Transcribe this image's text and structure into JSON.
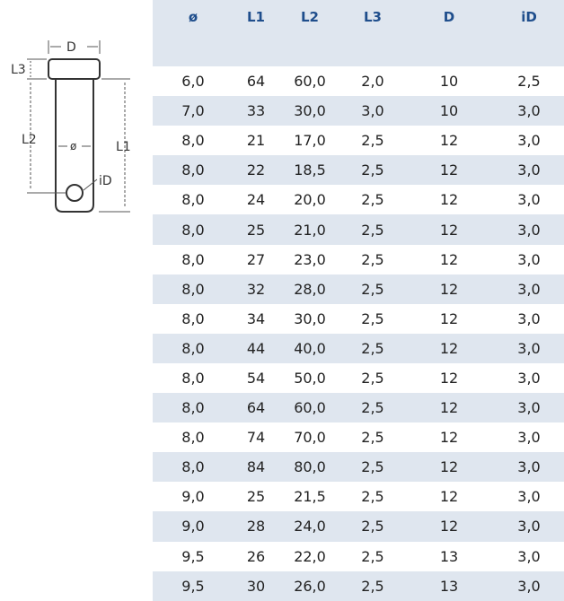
{
  "diagram": {
    "labels": {
      "d": "D",
      "l3": "L3",
      "l2": "L2",
      "l1": "L1",
      "dia": "ø",
      "id": "iD"
    }
  },
  "table": {
    "headers": [
      "ø",
      "L1",
      "L2",
      "L3",
      "D",
      "iD"
    ],
    "rows": [
      [
        "6,0",
        "64",
        "60,0",
        "2,0",
        "10",
        "2,5"
      ],
      [
        "7,0",
        "33",
        "30,0",
        "3,0",
        "10",
        "3,0"
      ],
      [
        "8,0",
        "21",
        "17,0",
        "2,5",
        "12",
        "3,0"
      ],
      [
        "8,0",
        "22",
        "18,5",
        "2,5",
        "12",
        "3,0"
      ],
      [
        "8,0",
        "24",
        "20,0",
        "2,5",
        "12",
        "3,0"
      ],
      [
        "8,0",
        "25",
        "21,0",
        "2,5",
        "12",
        "3,0"
      ],
      [
        "8,0",
        "27",
        "23,0",
        "2,5",
        "12",
        "3,0"
      ],
      [
        "8,0",
        "32",
        "28,0",
        "2,5",
        "12",
        "3,0"
      ],
      [
        "8,0",
        "34",
        "30,0",
        "2,5",
        "12",
        "3,0"
      ],
      [
        "8,0",
        "44",
        "40,0",
        "2,5",
        "12",
        "3,0"
      ],
      [
        "8,0",
        "54",
        "50,0",
        "2,5",
        "12",
        "3,0"
      ],
      [
        "8,0",
        "64",
        "60,0",
        "2,5",
        "12",
        "3,0"
      ],
      [
        "8,0",
        "74",
        "70,0",
        "2,5",
        "12",
        "3,0"
      ],
      [
        "8,0",
        "84",
        "80,0",
        "2,5",
        "12",
        "3,0"
      ],
      [
        "9,0",
        "25",
        "21,5",
        "2,5",
        "12",
        "3,0"
      ],
      [
        "9,0",
        "28",
        "24,0",
        "2,5",
        "12",
        "3,0"
      ],
      [
        "9,5",
        "26",
        "22,0",
        "2,5",
        "13",
        "3,0"
      ],
      [
        "9,5",
        "30",
        "26,0",
        "2,5",
        "13",
        "3,0"
      ]
    ]
  }
}
